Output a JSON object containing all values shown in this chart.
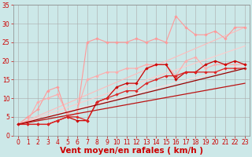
{
  "bg_color": "#cce8e8",
  "grid_color": "#aaaaaa",
  "xlabel": "Vent moyen/en rafales ( km/h )",
  "xlabel_color": "#cc0000",
  "xlabel_fontsize": 7.5,
  "xlim": [
    -0.5,
    23.5
  ],
  "ylim": [
    0,
    35
  ],
  "yticks": [
    0,
    5,
    10,
    15,
    20,
    25,
    30,
    35
  ],
  "xticks": [
    0,
    1,
    2,
    3,
    4,
    5,
    6,
    7,
    8,
    9,
    10,
    11,
    12,
    13,
    14,
    15,
    16,
    17,
    18,
    19,
    20,
    21,
    22,
    23
  ],
  "tick_color": "#cc0000",
  "tick_fontsize": 5.5,
  "lines": [
    {
      "x": [
        0,
        23
      ],
      "y": [
        3,
        29
      ],
      "color": "#ffbbbb",
      "lw": 0.8,
      "marker": null,
      "ms": 0,
      "ls": "-"
    },
    {
      "x": [
        0,
        23
      ],
      "y": [
        3,
        24
      ],
      "color": "#ffcccc",
      "lw": 0.8,
      "marker": null,
      "ms": 0,
      "ls": "-"
    },
    {
      "x": [
        0,
        23
      ],
      "y": [
        3,
        19
      ],
      "color": "#ffdddd",
      "lw": 0.8,
      "marker": null,
      "ms": 0,
      "ls": "-"
    },
    {
      "x": [
        0,
        1,
        2,
        3,
        4,
        5,
        6,
        7,
        8,
        9,
        10,
        11,
        12,
        13,
        14,
        15,
        16,
        17,
        18,
        19,
        20,
        21,
        22,
        23
      ],
      "y": [
        3,
        5,
        7,
        12,
        13,
        5,
        6,
        25,
        26,
        25,
        25,
        25,
        26,
        25,
        26,
        25,
        32,
        29,
        27,
        27,
        28,
        26,
        29,
        29
      ],
      "color": "#ff9999",
      "lw": 0.8,
      "marker": "D",
      "ms": 1.8,
      "ls": "-"
    },
    {
      "x": [
        0,
        1,
        2,
        3,
        4,
        5,
        6,
        7,
        8,
        9,
        10,
        11,
        12,
        13,
        14,
        15,
        16,
        17,
        18,
        19,
        20,
        21,
        22,
        23
      ],
      "y": [
        3,
        4,
        9,
        10,
        11,
        6,
        7,
        15,
        16,
        17,
        17,
        18,
        18,
        19,
        19,
        19,
        16,
        20,
        21,
        18,
        19,
        19,
        19,
        19
      ],
      "color": "#ffaaaa",
      "lw": 0.8,
      "marker": "D",
      "ms": 1.8,
      "ls": "-"
    },
    {
      "x": [
        0,
        1,
        2,
        3,
        4,
        5,
        6,
        7,
        8,
        9,
        10,
        11,
        12,
        13,
        14,
        15,
        16,
        17,
        18,
        19,
        20,
        21,
        22,
        23
      ],
      "y": [
        3,
        3,
        3,
        3,
        4,
        5,
        4,
        4,
        9,
        10,
        13,
        14,
        14,
        18,
        19,
        19,
        15,
        17,
        17,
        19,
        20,
        19,
        20,
        19
      ],
      "color": "#cc0000",
      "lw": 0.9,
      "marker": "D",
      "ms": 1.8,
      "ls": "-"
    },
    {
      "x": [
        0,
        1,
        2,
        3,
        4,
        5,
        6,
        7,
        8,
        9,
        10,
        11,
        12,
        13,
        14,
        15,
        16,
        17,
        18,
        19,
        20,
        21,
        22,
        23
      ],
      "y": [
        3,
        3,
        3,
        3,
        4,
        5,
        5,
        4,
        9,
        10,
        11,
        12,
        12,
        14,
        15,
        16,
        16,
        17,
        17,
        17,
        17,
        18,
        18,
        18
      ],
      "color": "#dd2222",
      "lw": 0.9,
      "marker": "D",
      "ms": 1.8,
      "ls": "-"
    },
    {
      "x": [
        0,
        23
      ],
      "y": [
        3,
        18
      ],
      "color": "#990000",
      "lw": 0.9,
      "marker": null,
      "ms": 0,
      "ls": "-"
    },
    {
      "x": [
        0,
        23
      ],
      "y": [
        3,
        14
      ],
      "color": "#bb1111",
      "lw": 0.9,
      "marker": null,
      "ms": 0,
      "ls": "-"
    }
  ]
}
